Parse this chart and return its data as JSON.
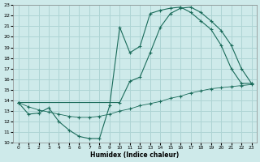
{
  "xlabel": "Humidex (Indice chaleur)",
  "bg_color": "#ceeaea",
  "grid_color": "#aed4d4",
  "line_color": "#1a6b5a",
  "xlim": [
    -0.5,
    23.5
  ],
  "ylim": [
    10,
    23
  ],
  "xticks": [
    0,
    1,
    2,
    3,
    4,
    5,
    6,
    7,
    8,
    9,
    10,
    11,
    12,
    13,
    14,
    15,
    16,
    17,
    18,
    19,
    20,
    21,
    22,
    23
  ],
  "yticks": [
    10,
    11,
    12,
    13,
    14,
    15,
    16,
    17,
    18,
    19,
    20,
    21,
    22,
    23
  ],
  "curve_top_x": [
    0,
    1,
    2,
    3,
    4,
    5,
    6,
    7,
    8,
    9,
    10,
    11,
    12,
    13,
    14,
    15,
    16,
    17,
    18,
    19,
    20,
    21,
    22,
    23
  ],
  "curve_top_y": [
    13.8,
    12.7,
    12.8,
    13.3,
    12.0,
    11.2,
    10.6,
    10.4,
    10.4,
    13.5,
    20.9,
    18.5,
    19.1,
    22.2,
    22.5,
    22.7,
    22.8,
    22.3,
    21.5,
    20.7,
    19.2,
    17.0,
    15.6,
    15.6
  ],
  "curve_mid_x": [
    0,
    10,
    11,
    12,
    13,
    14,
    15,
    16,
    17,
    18,
    19,
    20,
    21,
    22,
    23
  ],
  "curve_mid_y": [
    13.8,
    13.8,
    15.8,
    16.2,
    18.5,
    20.9,
    22.2,
    22.7,
    22.8,
    22.3,
    21.5,
    20.6,
    19.2,
    17.0,
    15.6
  ],
  "curve_flat_x": [
    0,
    1,
    2,
    3,
    4,
    5,
    6,
    7,
    8,
    9,
    10,
    11,
    12,
    13,
    14,
    15,
    16,
    17,
    18,
    19,
    20,
    21,
    22,
    23
  ],
  "curve_flat_y": [
    13.8,
    13.4,
    13.1,
    12.9,
    12.7,
    12.5,
    12.4,
    12.4,
    12.5,
    12.7,
    13.0,
    13.2,
    13.5,
    13.7,
    13.9,
    14.2,
    14.4,
    14.7,
    14.9,
    15.1,
    15.2,
    15.3,
    15.4,
    15.5
  ]
}
